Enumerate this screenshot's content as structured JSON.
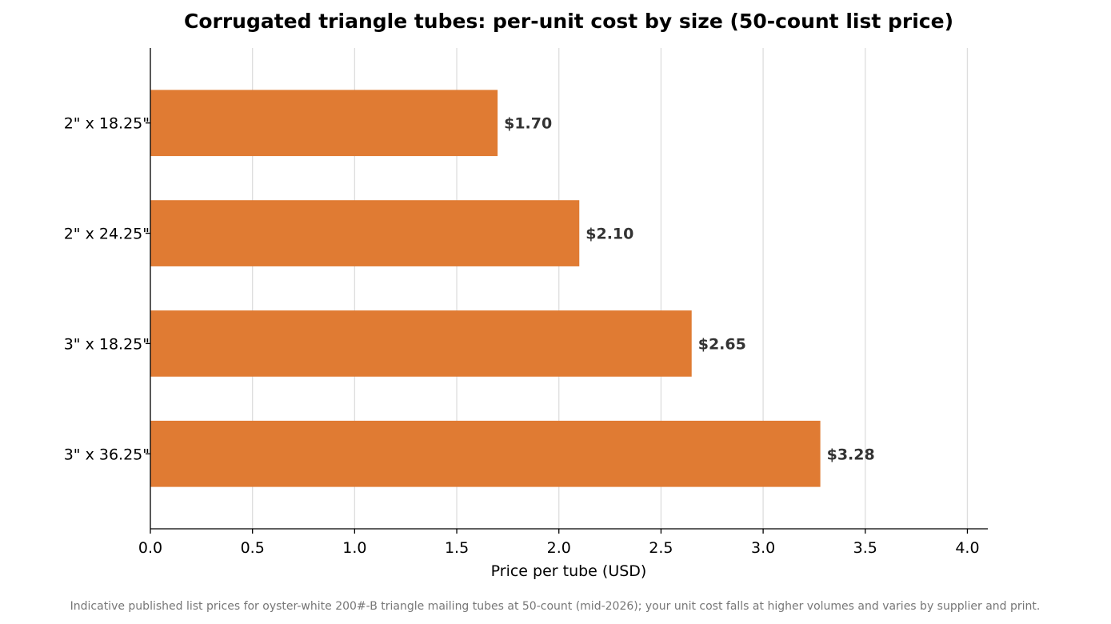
{
  "chart_data": {
    "type": "bar",
    "orientation": "horizontal",
    "title": "Corrugated triangle tubes: per-unit cost by size (50-count list price)",
    "xlabel": "Price per tube (USD)",
    "ylabel": "",
    "categories": [
      "2\" x 18.25\"",
      "2\" x 24.25\"",
      "3\" x 18.25\"",
      "3\" x 36.25\""
    ],
    "values": [
      1.7,
      2.1,
      2.65,
      3.28
    ],
    "value_labels": [
      "$1.70",
      "$2.10",
      "$2.65",
      "$3.28"
    ],
    "xlim": [
      0,
      4.1
    ],
    "xticks": [
      0,
      0.5,
      1,
      1.5,
      2,
      2.5,
      3,
      3.5,
      4
    ],
    "xtick_labels": [
      "0.0",
      "0.5",
      "1.0",
      "1.5",
      "2.0",
      "2.5",
      "3.0",
      "3.5",
      "4.0"
    ],
    "grid": "vertical",
    "bar_color": "#e07b33",
    "grid_color": "#dddddd",
    "footnote": "Indicative published list prices for oyster-white 200#-B triangle mailing tubes at 50-count (mid-2026); your unit cost falls at higher volumes and varies by supplier and print."
  }
}
